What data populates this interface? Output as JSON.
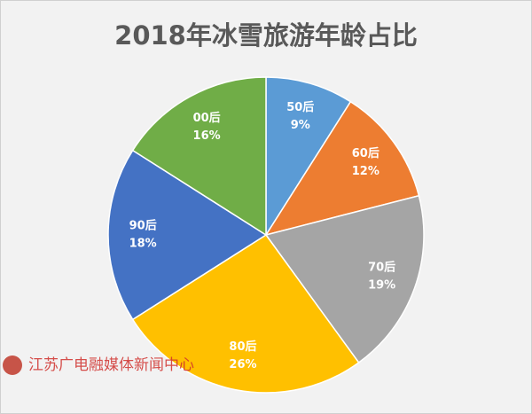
{
  "chart_data": {
    "type": "pie",
    "title": "2018年冰雪旅游年龄占比",
    "categories": [
      "50后",
      "60后",
      "70后",
      "80后",
      "90后",
      "00后"
    ],
    "values": [
      9,
      12,
      19,
      26,
      18,
      16
    ],
    "value_labels": [
      "9%",
      "12%",
      "19%",
      "26%",
      "18%",
      "16%"
    ],
    "colors": [
      "#5b9bd5",
      "#ed7d31",
      "#a5a5a5",
      "#ffc000",
      "#4472c4",
      "#70ad47"
    ],
    "watermark": "江苏广电融媒体新闻中心"
  }
}
